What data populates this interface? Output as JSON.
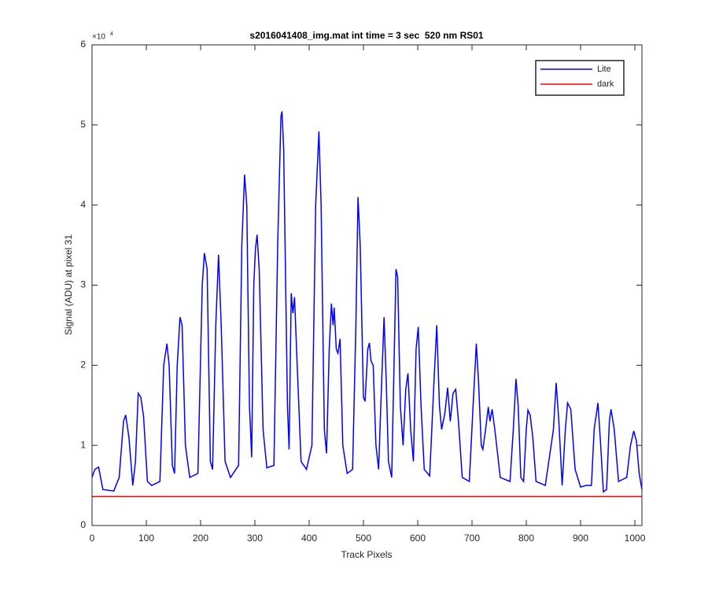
{
  "chart_data": {
    "type": "line",
    "title": "s2016041408_img.mat int time = 3 sec  520 nm RS01",
    "x_label": "Track Pixels",
    "y_label": "Signal (ADU) at pixel 31",
    "y_multiplier": {
      "base": "×10",
      "exponent": "4"
    },
    "xlim": [
      0,
      1013
    ],
    "ylim": [
      0,
      6
    ],
    "xticks": [
      0,
      100,
      200,
      300,
      400,
      500,
      600,
      700,
      800,
      900,
      1000
    ],
    "yticks": [
      0,
      1,
      2,
      3,
      4,
      5,
      6
    ],
    "grid": false,
    "legend": "northeast",
    "series": [
      {
        "name": "Lite",
        "color": "#0000ff",
        "x": [
          0,
          5,
          12,
          20,
          40,
          50,
          58,
          62,
          68,
          75,
          80,
          85,
          90,
          95,
          102,
          110,
          125,
          132,
          138,
          142,
          148,
          152,
          157,
          162,
          166,
          172,
          180,
          195,
          203,
          207,
          212,
          218,
          222,
          228,
          233,
          238,
          245,
          255,
          270,
          276,
          281,
          285,
          290,
          294,
          298,
          301,
          304,
          308,
          315,
          322,
          335,
          342,
          348,
          350,
          353,
          360,
          363,
          367,
          370,
          373,
          378,
          385,
          395,
          405,
          412,
          418,
          422,
          428,
          432,
          437,
          441,
          444,
          446,
          450,
          453,
          457,
          462,
          470,
          480,
          486,
          490,
          494,
          500,
          503,
          508,
          511,
          514,
          518,
          523,
          528,
          532,
          538,
          542,
          546,
          552,
          560,
          563,
          568,
          573,
          578,
          582,
          587,
          592,
          597,
          601,
          606,
          612,
          622,
          630,
          635,
          640,
          644,
          650,
          655,
          660,
          665,
          670,
          675,
          682,
          695,
          702,
          708,
          712,
          717,
          720,
          725,
          730,
          733,
          737,
          742,
          752,
          770,
          776,
          781,
          785,
          790,
          795,
          800,
          803,
          807,
          812,
          818,
          835,
          850,
          855,
          860,
          866,
          872,
          876,
          882,
          890,
          900,
          910,
          920,
          925,
          932,
          937,
          942,
          948,
          953,
          956,
          962,
          970,
          985,
          992,
          998,
          1003,
          1008,
          1013
        ],
        "values": [
          0.6,
          0.7,
          0.73,
          0.45,
          0.43,
          0.6,
          1.3,
          1.38,
          1.1,
          0.5,
          0.8,
          1.65,
          1.6,
          1.35,
          0.55,
          0.5,
          0.55,
          2.0,
          2.27,
          2.0,
          0.75,
          0.65,
          2.0,
          2.6,
          2.5,
          1.0,
          0.6,
          0.65,
          3.0,
          3.4,
          3.2,
          0.8,
          0.7,
          2.5,
          3.38,
          2.5,
          0.8,
          0.6,
          0.75,
          3.5,
          4.38,
          4.0,
          1.5,
          0.85,
          3.0,
          3.45,
          3.63,
          3.2,
          1.2,
          0.72,
          0.75,
          3.5,
          5.1,
          5.17,
          4.7,
          1.5,
          0.95,
          2.9,
          2.65,
          2.85,
          2.0,
          0.8,
          0.7,
          1.0,
          4.0,
          4.92,
          4.0,
          1.2,
          0.9,
          2.2,
          2.77,
          2.5,
          2.72,
          2.2,
          2.15,
          2.33,
          1.0,
          0.65,
          0.7,
          2.5,
          4.1,
          3.5,
          1.6,
          1.55,
          2.2,
          2.28,
          2.05,
          2.0,
          1.0,
          0.7,
          1.5,
          2.6,
          1.8,
          0.8,
          0.6,
          3.2,
          3.1,
          1.5,
          1.0,
          1.7,
          1.9,
          1.2,
          0.8,
          2.2,
          2.48,
          1.5,
          0.7,
          0.62,
          1.8,
          2.5,
          1.5,
          1.2,
          1.4,
          1.72,
          1.3,
          1.65,
          1.7,
          1.3,
          0.6,
          0.55,
          1.5,
          2.27,
          1.8,
          1.0,
          0.95,
          1.2,
          1.48,
          1.3,
          1.45,
          1.2,
          0.6,
          0.55,
          1.2,
          1.83,
          1.5,
          0.6,
          0.55,
          1.2,
          1.44,
          1.38,
          1.1,
          0.55,
          0.5,
          1.2,
          1.78,
          1.3,
          0.5,
          1.2,
          1.53,
          1.45,
          0.7,
          0.48,
          0.5,
          0.5,
          1.2,
          1.53,
          1.0,
          0.42,
          0.45,
          1.3,
          1.45,
          1.2,
          0.55,
          0.6,
          1.0,
          1.18,
          1.05,
          0.65,
          0.45
        ]
      },
      {
        "name": "dark",
        "color": "#ff0000",
        "x": [
          0,
          1013
        ],
        "values": [
          0.36,
          0.36
        ]
      }
    ]
  }
}
